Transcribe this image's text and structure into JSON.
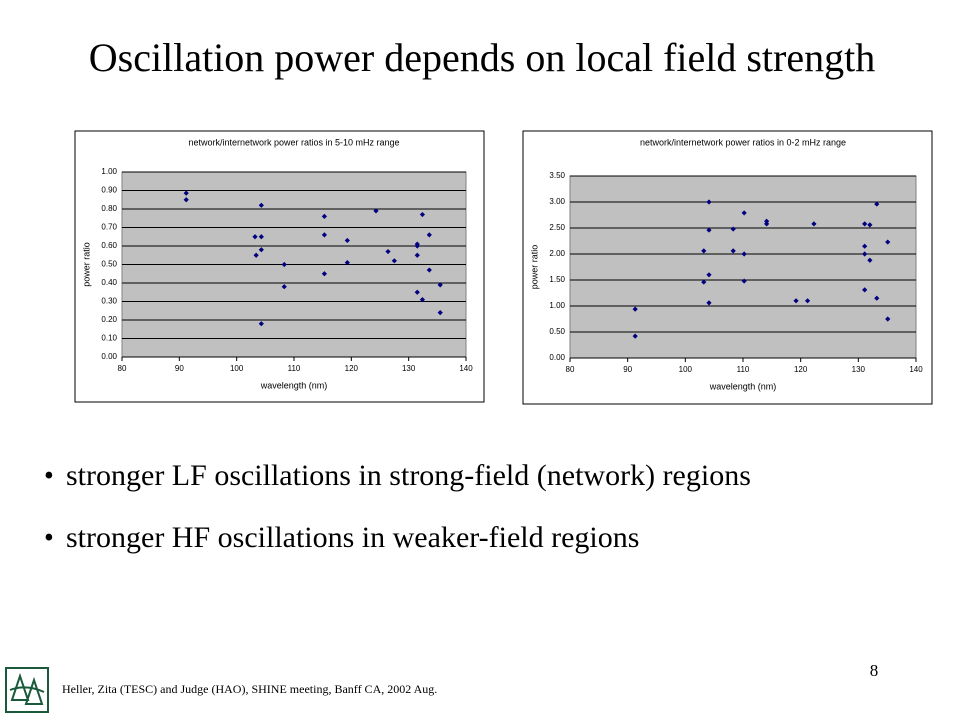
{
  "slide": {
    "title": "Oscillation power depends on local field strength",
    "bullets": [
      "stronger LF oscillations in strong-field (network) regions",
      "stronger HF oscillations in weaker-field regions"
    ],
    "page_number": 8,
    "footer": "Heller, Zita (TESC) and Judge (HAO), SHINE meeting, Banff CA, 2002 Aug."
  },
  "chart_data": [
    {
      "type": "scatter",
      "title": "network/internetwork power ratios in 5-10 mHz range",
      "x_label": "wavelength (nm)",
      "y_label": "power ratio",
      "color": "#000080",
      "x": [
        91.2,
        91.2,
        104.3,
        103.2,
        104.3,
        103.4,
        104.3,
        104.3,
        108.3,
        108.3,
        115.3,
        115.3,
        115.3,
        119.3,
        119.3,
        124.3,
        126.4,
        127.5,
        131.5,
        131.5,
        131.5,
        131.5,
        132.4,
        132.4,
        133.6,
        133.6,
        135.5,
        135.5
      ],
      "values": [
        0.886,
        0.85,
        0.82,
        0.65,
        0.65,
        0.55,
        0.58,
        0.18,
        0.5,
        0.38,
        0.76,
        0.66,
        0.45,
        0.63,
        0.51,
        0.79,
        0.57,
        0.52,
        0.61,
        0.6,
        0.55,
        0.35,
        0.77,
        0.31,
        0.66,
        0.47,
        0.39,
        0.24
      ],
      "xlim": [
        80,
        140
      ],
      "xticks": [
        80,
        90,
        100,
        110,
        120,
        130,
        140
      ],
      "ylim": [
        0,
        1
      ],
      "yticks": [
        {
          "value": 0,
          "label": "0.00"
        },
        {
          "value": 0.1,
          "label": "0.10"
        },
        {
          "value": 0.2,
          "label": "0.20"
        },
        {
          "value": 0.3,
          "label": "0.30"
        },
        {
          "value": 0.4,
          "label": "0.40"
        },
        {
          "value": 0.5,
          "label": "0.50"
        },
        {
          "value": 0.6,
          "label": "0.60"
        },
        {
          "value": 0.7,
          "label": "0.70"
        },
        {
          "value": 0.8,
          "label": "0.80"
        },
        {
          "value": 0.9,
          "label": "0.90"
        },
        {
          "value": 1,
          "label": "1.00"
        }
      ],
      "grid": true
    },
    {
      "type": "scatter",
      "title": "network/internetwork power ratios in 0-2 mHz range",
      "x_label": "wavelength (nm)",
      "y_label": "power ratio",
      "color": "#000080",
      "x": [
        91.3,
        91.3,
        104.1,
        104.1,
        103.2,
        103.2,
        104.1,
        104.1,
        108.3,
        108.3,
        110.2,
        110.2,
        110.2,
        114.1,
        114.1,
        119.2,
        121.2,
        122.3,
        131.1,
        131.1,
        131.1,
        131.1,
        132.0,
        132.0,
        133.2,
        133.2,
        135.1,
        135.1
      ],
      "values": [
        0.94,
        0.42,
        3.0,
        2.46,
        2.06,
        1.46,
        1.6,
        1.06,
        2.48,
        2.06,
        2.79,
        2.0,
        1.48,
        2.63,
        2.58,
        1.1,
        1.1,
        2.58,
        2.58,
        2.15,
        2.0,
        1.31,
        2.56,
        1.88,
        2.96,
        1.15,
        2.23,
        0.75
      ],
      "xlim": [
        80,
        140
      ],
      "xticks": [
        80,
        90,
        100,
        110,
        120,
        130,
        140
      ],
      "ylim": [
        0,
        3.5
      ],
      "yticks": [
        {
          "value": 0,
          "label": "0.00"
        },
        {
          "value": 0.5,
          "label": "0.50"
        },
        {
          "value": 1,
          "label": "1.00"
        },
        {
          "value": 1.5,
          "label": "1.50"
        },
        {
          "value": 2,
          "label": "2.00"
        },
        {
          "value": 2.5,
          "label": "2.50"
        },
        {
          "value": 3,
          "label": "3.00"
        },
        {
          "value": 3.5,
          "label": "3.50"
        }
      ],
      "grid": true
    }
  ]
}
